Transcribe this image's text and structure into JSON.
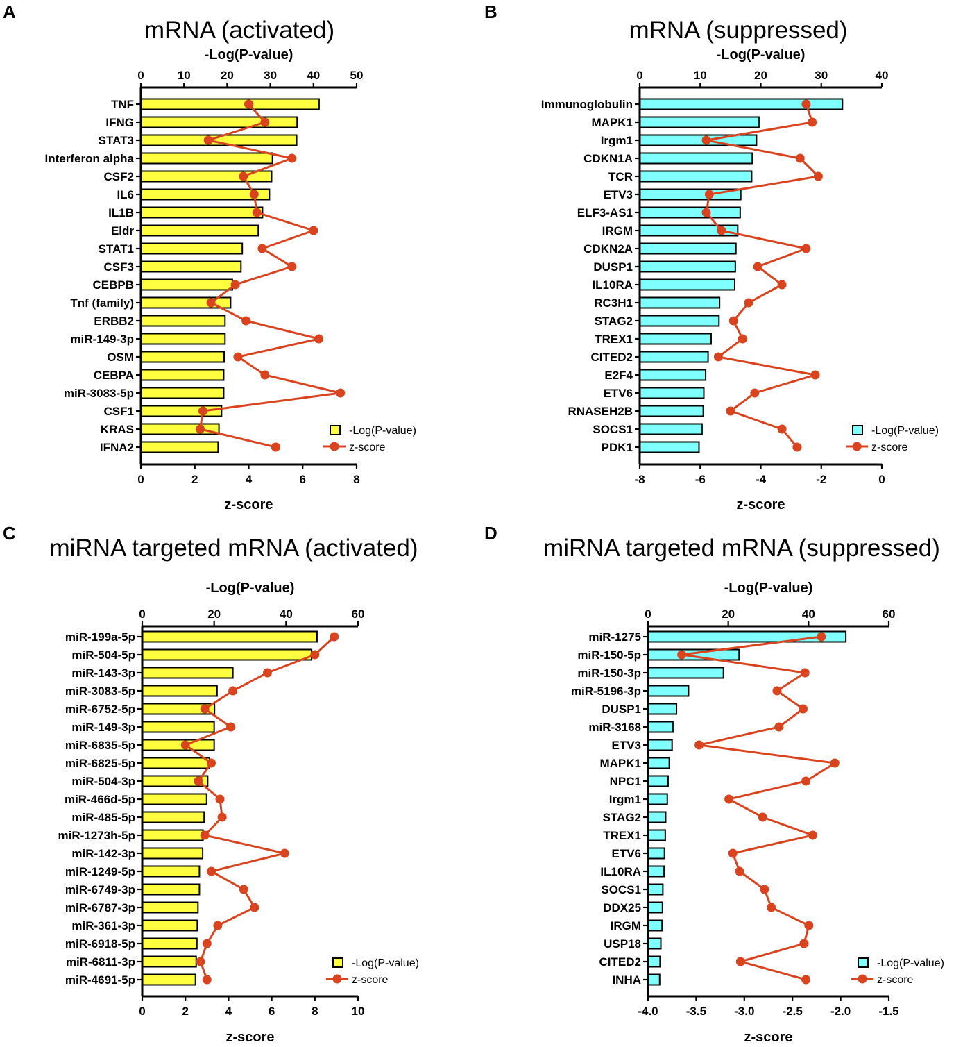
{
  "figure": {
    "bar_colors": {
      "yellow": "#ffff40",
      "cyan": "#80ffff"
    },
    "zscore_color": "#d9441f"
  },
  "chart_data": [
    {
      "id": "A",
      "panel_letter": "A",
      "type": "bar",
      "orientation": "horizontal",
      "title": "mRNA (activated)",
      "top_axis_label": "-Log(P-value)",
      "bottom_axis_label": "z-score",
      "top_range": [
        0,
        50
      ],
      "top_ticks": [
        "0",
        "10",
        "20",
        "30",
        "40",
        "50"
      ],
      "bottom_range": [
        0,
        8
      ],
      "bottom_ticks": [
        "0",
        "2",
        "4",
        "6",
        "8"
      ],
      "bar_color": "yellow",
      "legend": {
        "bar_label": "-Log(P-value)",
        "line_label": "z-score",
        "position": "bottom-right"
      },
      "categories": [
        "TNF",
        "IFNG",
        "STAT3",
        "Interferon alpha",
        "CSF2",
        "IL6",
        "IL1B",
        "Eldr",
        "STAT1",
        "CSF3",
        "CEBPB",
        "Tnf (family)",
        "ERBB2",
        "miR-149-3p",
        "OSM",
        "CEBPA",
        "miR-3083-5p",
        "CSF1",
        "KRAS",
        "IFNA2"
      ],
      "series": [
        {
          "name": "-Log(P-value)",
          "kind": "bar",
          "values": [
            41.3,
            36.2,
            36.1,
            30.5,
            30.3,
            29.8,
            28.2,
            27.2,
            23.5,
            23.2,
            21.2,
            20.8,
            19.5,
            19.5,
            19.3,
            19.2,
            19.2,
            18.7,
            18.1,
            17.9
          ]
        },
        {
          "name": "z-score",
          "kind": "line",
          "values": [
            4.0,
            4.6,
            2.5,
            5.6,
            3.8,
            4.2,
            4.3,
            6.4,
            4.5,
            5.6,
            3.5,
            2.6,
            3.9,
            6.6,
            3.6,
            4.6,
            7.4,
            2.3,
            2.2,
            5.0
          ]
        }
      ]
    },
    {
      "id": "B",
      "panel_letter": "B",
      "type": "bar",
      "orientation": "horizontal",
      "title": "mRNA (suppressed)",
      "top_axis_label": "-Log(P-value)",
      "bottom_axis_label": "z-score",
      "top_range": [
        0,
        40
      ],
      "top_ticks": [
        "0",
        "10",
        "20",
        "30",
        "40"
      ],
      "bottom_range": [
        -8,
        0
      ],
      "bottom_ticks": [
        "-8",
        "-6",
        "-4",
        "-2",
        "0"
      ],
      "bar_color": "cyan",
      "legend": {
        "bar_label": "-Log(P-value)",
        "line_label": "z-score",
        "position": "bottom-right"
      },
      "categories": [
        "Immunoglobulin",
        "MAPK1",
        "Irgm1",
        "CDKN1A",
        "TCR",
        "ETV3",
        "ELF3-AS1",
        "IRGM",
        "CDKN2A",
        "DUSP1",
        "IL10RA",
        "RC3H1",
        "STAG2",
        "TREX1",
        "CITED2",
        "E2F4",
        "ETV6",
        "RNASEH2B",
        "SOCS1",
        "PDK1"
      ],
      "series": [
        {
          "name": "-Log(P-value)",
          "kind": "bar",
          "values": [
            33.5,
            19.7,
            19.3,
            18.6,
            18.5,
            16.7,
            16.6,
            16.2,
            15.9,
            15.8,
            15.7,
            13.2,
            13.1,
            11.8,
            11.3,
            10.9,
            10.6,
            10.5,
            10.3,
            9.8
          ]
        },
        {
          "name": "z-score",
          "kind": "line",
          "values": [
            -2.5,
            -2.3,
            -5.8,
            -2.7,
            -2.1,
            -5.7,
            -5.8,
            -5.3,
            -2.5,
            -4.1,
            -3.3,
            -4.4,
            -4.9,
            -4.6,
            -5.4,
            -2.2,
            -4.2,
            -5.0,
            -3.3,
            -2.8
          ]
        }
      ]
    },
    {
      "id": "C",
      "panel_letter": "C",
      "type": "bar",
      "orientation": "horizontal",
      "title": "miRNA targeted mRNA (activated)",
      "top_axis_label": "-Log(P-value)",
      "bottom_axis_label": "z-score",
      "top_range": [
        0,
        60
      ],
      "top_ticks": [
        "0",
        "20",
        "40",
        "60"
      ],
      "bottom_range": [
        0,
        10
      ],
      "bottom_ticks": [
        "0",
        "2",
        "4",
        "6",
        "8",
        "10"
      ],
      "bar_color": "yellow",
      "legend": {
        "bar_label": "-Log(P-value)",
        "line_label": "z-score",
        "position": "bottom-right"
      },
      "categories": [
        "miR-199a-5p",
        "miR-504-5p",
        "miR-143-3p",
        "miR-3083-5p",
        "miR-6752-5p",
        "miR-149-3p",
        "miR-6835-5p",
        "miR-6825-5p",
        "miR-504-3p",
        "miR-466d-5p",
        "miR-485-5p",
        "miR-1273h-5p",
        "miR-142-3p",
        "miR-1249-5p",
        "miR-6749-3p",
        "miR-6787-3p",
        "miR-361-3p",
        "miR-6918-5p",
        "miR-6811-3p",
        "miR-4691-5p"
      ],
      "series": [
        {
          "name": "-Log(P-value)",
          "kind": "bar",
          "values": [
            48.6,
            47.1,
            25.2,
            20.8,
            20.1,
            20.0,
            20.0,
            18.7,
            18.2,
            17.9,
            17.2,
            16.9,
            16.8,
            15.9,
            15.9,
            15.5,
            15.3,
            15.2,
            15.0,
            14.8
          ]
        },
        {
          "name": "z-score",
          "kind": "line",
          "values": [
            8.9,
            8.0,
            5.8,
            4.2,
            2.9,
            4.1,
            2.0,
            3.2,
            2.6,
            3.6,
            3.7,
            2.9,
            6.6,
            3.2,
            4.7,
            5.2,
            3.5,
            3.0,
            2.7,
            3.0
          ]
        }
      ]
    },
    {
      "id": "D",
      "panel_letter": "D",
      "type": "bar",
      "orientation": "horizontal",
      "title": "miRNA targeted mRNA (suppressed)",
      "top_axis_label": "-Log(P-value)",
      "bottom_axis_label": "z-score",
      "top_range": [
        0,
        60
      ],
      "top_ticks": [
        "0",
        "20",
        "40",
        "60"
      ],
      "bottom_range": [
        -4.0,
        -1.5
      ],
      "bottom_ticks": [
        "-4.0",
        "-3.5",
        "-3.0",
        "-2.5",
        "-2.0",
        "-1.5"
      ],
      "bar_color": "cyan",
      "legend": {
        "bar_label": "-Log(P-value)",
        "line_label": "z-score",
        "position": "bottom-right"
      },
      "categories": [
        "miR-1275",
        "miR-150-5p",
        "miR-150-3p",
        "miR-5196-3p",
        "DUSP1",
        "miR-3168",
        "ETV3",
        "MAPK1",
        "NPC1",
        "Irgm1",
        "STAG2",
        "TREX1",
        "ETV6",
        "IL10RA",
        "SOCS1",
        "DDX25",
        "IRGM",
        "USP18",
        "CITED2",
        "INHA"
      ],
      "series": [
        {
          "name": "-Log(P-value)",
          "kind": "bar",
          "values": [
            49.3,
            22.7,
            18.8,
            10.1,
            7.1,
            6.2,
            6.0,
            5.3,
            5.0,
            4.8,
            4.4,
            4.3,
            4.1,
            4.0,
            3.7,
            3.6,
            3.5,
            3.2,
            3.0,
            2.9
          ]
        },
        {
          "name": "z-score",
          "kind": "line",
          "values": [
            -2.2,
            -3.65,
            -2.37,
            -2.66,
            -2.39,
            -2.64,
            -3.47,
            -2.06,
            -2.36,
            -3.16,
            -2.81,
            -2.29,
            -3.12,
            -3.05,
            -2.79,
            -2.72,
            -2.33,
            -2.38,
            -3.04,
            -2.36
          ]
        }
      ]
    }
  ]
}
